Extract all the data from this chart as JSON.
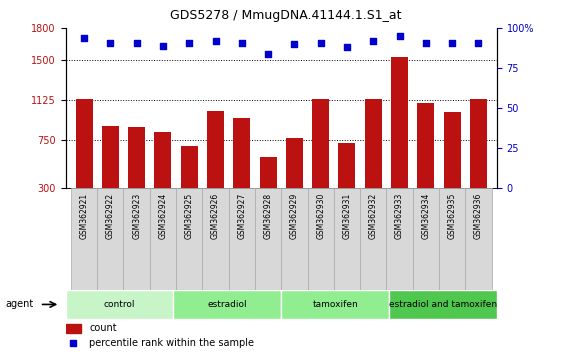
{
  "title": "GDS5278 / MmugDNA.41144.1.S1_at",
  "samples": [
    "GSM362921",
    "GSM362922",
    "GSM362923",
    "GSM362924",
    "GSM362925",
    "GSM362926",
    "GSM362927",
    "GSM362928",
    "GSM362929",
    "GSM362930",
    "GSM362931",
    "GSM362932",
    "GSM362933",
    "GSM362934",
    "GSM362935",
    "GSM362936"
  ],
  "counts": [
    1130,
    880,
    870,
    820,
    690,
    1020,
    960,
    590,
    770,
    1130,
    720,
    1130,
    1530,
    1100,
    1010,
    1130
  ],
  "percentile_ranks": [
    94,
    91,
    91,
    89,
    91,
    92,
    91,
    84,
    90,
    91,
    88,
    92,
    95,
    91,
    91,
    91
  ],
  "groups": [
    {
      "label": "control",
      "start": 0,
      "end": 4,
      "color": "#c8f5c8"
    },
    {
      "label": "estradiol",
      "start": 4,
      "end": 8,
      "color": "#90ee90"
    },
    {
      "label": "tamoxifen",
      "start": 8,
      "end": 12,
      "color": "#90ee90"
    },
    {
      "label": "estradiol and tamoxifen",
      "start": 12,
      "end": 16,
      "color": "#50c850"
    }
  ],
  "bar_color": "#bb1111",
  "dot_color": "#0000cc",
  "ylim_left": [
    300,
    1800
  ],
  "yticks_left": [
    300,
    750,
    1125,
    1500,
    1800
  ],
  "ylim_right": [
    0,
    100
  ],
  "yticks_right": [
    0,
    25,
    50,
    75,
    100
  ],
  "legend_count_label": "count",
  "legend_pct_label": "percentile rank within the sample",
  "agent_label": "agent"
}
